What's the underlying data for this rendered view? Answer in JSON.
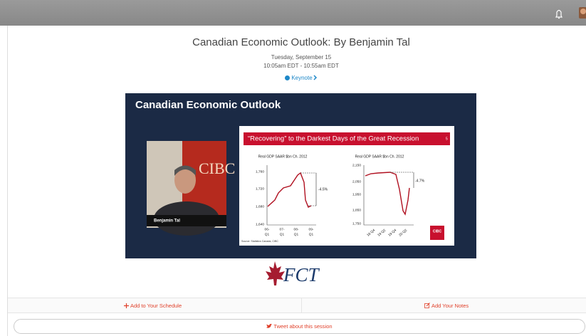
{
  "header": {
    "title": "Canadian Economic Outlook: By Benjamin Tal",
    "date": "Tuesday, September 15",
    "time": "10:05am EDT - 10:55am EDT",
    "track": "Keynote"
  },
  "video": {
    "slide_title": "Canadian Economic Outlook",
    "speaker_name": "Benjamin Tal",
    "background_text": "CIBC",
    "slide": {
      "banner": "“Recovering” to the Darkest Days of the Great Recession",
      "page": "5",
      "charts": [
        {
          "title": "Real GDP SAAR $bn Ch. 2012",
          "yticks": [
            "1,760",
            "1,720",
            "1,680",
            "1,640"
          ],
          "xticks": [
            [
              "06-",
              "Q1"
            ],
            [
              "07-",
              "Q1"
            ],
            [
              "08-",
              "Q1"
            ],
            [
              "09-",
              "Q1"
            ]
          ],
          "annotation": "-4.5%"
        },
        {
          "title": "Real GDP SAAR $bn Ch. 2012",
          "yticks": [
            "2,150",
            "2,050",
            "1,950",
            "1,850",
            "1,750"
          ],
          "xticks": [
            "18 Q4",
            "19 Q2",
            "19 Q4",
            "20 Q2"
          ],
          "annotation": "-4.7%"
        }
      ],
      "source": "Source: Statistics Canada, CIBC",
      "logo": "CIBC"
    },
    "sponsor": "FCT"
  },
  "actions": {
    "schedule": "Add to Your Schedule",
    "notes": "Add Your Notes",
    "tweet": "Tweet about this session"
  }
}
